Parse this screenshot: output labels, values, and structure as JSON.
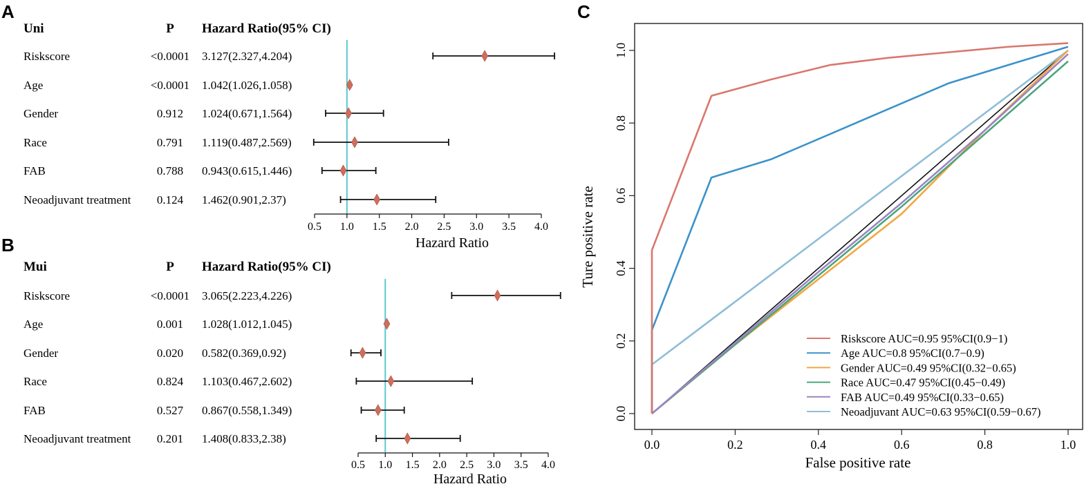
{
  "panels": {
    "a": "A",
    "b": "B",
    "c": "C"
  },
  "chart_data": [
    {
      "type": "forest",
      "panel": "A",
      "headers": {
        "name": "Uni",
        "p": "P",
        "hr": "Hazard Ratio(95% CI)"
      },
      "rows": [
        {
          "name": "Riskscore",
          "p": "<0.0001",
          "hr_text": "3.127(2.327,4.204)",
          "hr": 3.127,
          "lo": 2.327,
          "hi": 4.204
        },
        {
          "name": "Age",
          "p": "<0.0001",
          "hr_text": "1.042(1.026,1.058)",
          "hr": 1.042,
          "lo": 1.026,
          "hi": 1.058
        },
        {
          "name": "Gender",
          "p": "0.912",
          "hr_text": "1.024(0.671,1.564)",
          "hr": 1.024,
          "lo": 0.671,
          "hi": 1.564
        },
        {
          "name": "Race",
          "p": "0.791",
          "hr_text": "1.119(0.487,2.569)",
          "hr": 1.119,
          "lo": 0.487,
          "hi": 2.569
        },
        {
          "name": "FAB",
          "p": "0.788",
          "hr_text": "0.943(0.615,1.446)",
          "hr": 0.943,
          "lo": 0.615,
          "hi": 1.446
        },
        {
          "name": "Neoadjuvant treatment",
          "p": "0.124",
          "hr_text": "1.462(0.901,2.37)",
          "hr": 1.462,
          "lo": 0.901,
          "hi": 2.37
        }
      ],
      "xlim": [
        0.5,
        4.0
      ],
      "xticks": [
        "0.5",
        "1.0",
        "1.5",
        "2.0",
        "2.5",
        "3.0",
        "3.5",
        "4.0"
      ],
      "xlabel": "Hazard Ratio",
      "ref_line": 1.0
    },
    {
      "type": "forest",
      "panel": "B",
      "headers": {
        "name": "Mui",
        "p": "P",
        "hr": "Hazard Ratio(95% CI)"
      },
      "rows": [
        {
          "name": "Riskscore",
          "p": "<0.0001",
          "hr_text": "3.065(2.223,4.226)",
          "hr": 3.065,
          "lo": 2.223,
          "hi": 4.226
        },
        {
          "name": "Age",
          "p": "0.001",
          "hr_text": "1.028(1.012,1.045)",
          "hr": 1.028,
          "lo": 1.012,
          "hi": 1.045
        },
        {
          "name": "Gender",
          "p": "0.020",
          "hr_text": "0.582(0.369,0.92)",
          "hr": 0.582,
          "lo": 0.369,
          "hi": 0.92
        },
        {
          "name": "Race",
          "p": "0.824",
          "hr_text": "1.103(0.467,2.602)",
          "hr": 1.103,
          "lo": 0.467,
          "hi": 2.602
        },
        {
          "name": "FAB",
          "p": "0.527",
          "hr_text": "0.867(0.558,1.349)",
          "hr": 0.867,
          "lo": 0.558,
          "hi": 1.349
        },
        {
          "name": "Neoadjuvant treatment",
          "p": "0.201",
          "hr_text": "1.408(0.833,2.38)",
          "hr": 1.408,
          "lo": 0.833,
          "hi": 2.38
        }
      ],
      "xlim": [
        0.5,
        4.0
      ],
      "xticks": [
        "0.5",
        "1.0",
        "1.5",
        "2.0",
        "2.5",
        "3.0",
        "3.5",
        "4.0"
      ],
      "xlabel": "Hazard Ratio",
      "ref_line": 1.0
    },
    {
      "type": "line",
      "panel": "C",
      "title": "",
      "xlabel": "False positive rate",
      "ylabel": "Ture positive rate",
      "xlim": [
        0,
        1
      ],
      "ylim": [
        0,
        1
      ],
      "xticks": [
        "0.0",
        "0.2",
        "0.4",
        "0.6",
        "0.8",
        "1.0"
      ],
      "yticks": [
        "0.0",
        "0.2",
        "0.4",
        "0.6",
        "0.8",
        "1.0"
      ],
      "legend_position": "bottom-right",
      "diagonal": true,
      "series": [
        {
          "name": "Riskscore AUC=0.95 95%CI(0.9−1)",
          "color": "#D9776C",
          "x": [
            0,
            0,
            0.143,
            0.286,
            0.429,
            0.571,
            0.714,
            0.857,
            1
          ],
          "y": [
            0,
            0.45,
            0.875,
            0.92,
            0.96,
            0.98,
            0.995,
            1.01,
            1.02
          ]
        },
        {
          "name": "Age AUC=0.8 95%CI(0.7−0.9)",
          "color": "#3C92C9",
          "x": [
            0,
            0,
            0.143,
            0.286,
            0.429,
            0.571,
            0.714,
            0.857,
            1
          ],
          "y": [
            0,
            0.23,
            0.65,
            0.7,
            0.77,
            0.84,
            0.91,
            0.96,
            1.01
          ]
        },
        {
          "name": "Gender AUC=0.49 95%CI(0.32−0.65)",
          "color": "#F2A644",
          "x": [
            0,
            0.2,
            0.4,
            0.6,
            0.8,
            1
          ],
          "y": [
            0,
            0.19,
            0.37,
            0.55,
            0.78,
            1.0
          ]
        },
        {
          "name": "Race AUC=0.47 95%CI(0.45−0.49)",
          "color": "#4CA67A",
          "x": [
            0,
            0.2,
            0.4,
            0.6,
            0.8,
            1
          ],
          "y": [
            0,
            0.19,
            0.38,
            0.57,
            0.77,
            0.97
          ]
        },
        {
          "name": "FAB AUC=0.49 95%CI(0.33−0.65)",
          "color": "#9B85C4",
          "x": [
            0,
            0.2,
            0.4,
            0.6,
            0.8,
            1
          ],
          "y": [
            0,
            0.195,
            0.39,
            0.58,
            0.78,
            0.99
          ]
        },
        {
          "name": "Neoadjuvant AUC=0.63 95%CI(0.59−0.67)",
          "color": "#8FBDD6",
          "x": [
            0,
            0,
            1
          ],
          "y": [
            0,
            0.135,
            1.0
          ]
        }
      ]
    }
  ]
}
